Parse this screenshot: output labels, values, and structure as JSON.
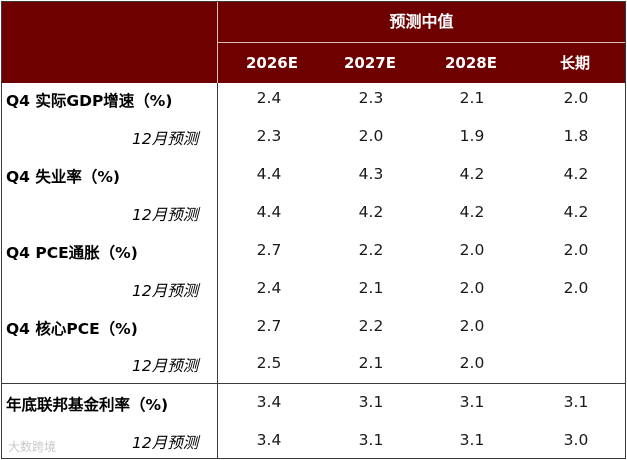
{
  "table": {
    "group_header": "预测中值",
    "columns": [
      "2026E",
      "2027E",
      "2028E",
      "长期"
    ],
    "rows": [
      {
        "label": "Q4 实际GDP增速（%)",
        "type": "main",
        "values": [
          "2.4",
          "2.3",
          "2.1",
          "2.0"
        ]
      },
      {
        "label": "12月预测",
        "type": "sub",
        "values": [
          "2.3",
          "2.0",
          "1.9",
          "1.8"
        ]
      },
      {
        "label": "Q4 失业率（%)",
        "type": "main",
        "values": [
          "4.4",
          "4.3",
          "4.2",
          "4.2"
        ]
      },
      {
        "label": "12月预测",
        "type": "sub",
        "values": [
          "4.4",
          "4.2",
          "4.2",
          "4.2"
        ]
      },
      {
        "label": "Q4 PCE通胀（%)",
        "type": "main",
        "values": [
          "2.7",
          "2.2",
          "2.0",
          "2.0"
        ]
      },
      {
        "label": "12月预测",
        "type": "sub",
        "values": [
          "2.4",
          "2.1",
          "2.0",
          "2.0"
        ]
      },
      {
        "label": "Q4 核心PCE（%)",
        "type": "main",
        "values": [
          "2.7",
          "2.2",
          "2.0",
          ""
        ]
      },
      {
        "label": "12月预测",
        "type": "sub",
        "values": [
          "2.5",
          "2.1",
          "2.0",
          ""
        ]
      },
      {
        "label": "年底联邦基金利率（%)",
        "type": "main",
        "values": [
          "3.4",
          "3.1",
          "3.1",
          "3.1"
        ]
      },
      {
        "label": "12月预测",
        "type": "sub",
        "values": [
          "3.4",
          "3.1",
          "3.1",
          "3.0"
        ]
      }
    ]
  },
  "watermark": "大数跨境"
}
